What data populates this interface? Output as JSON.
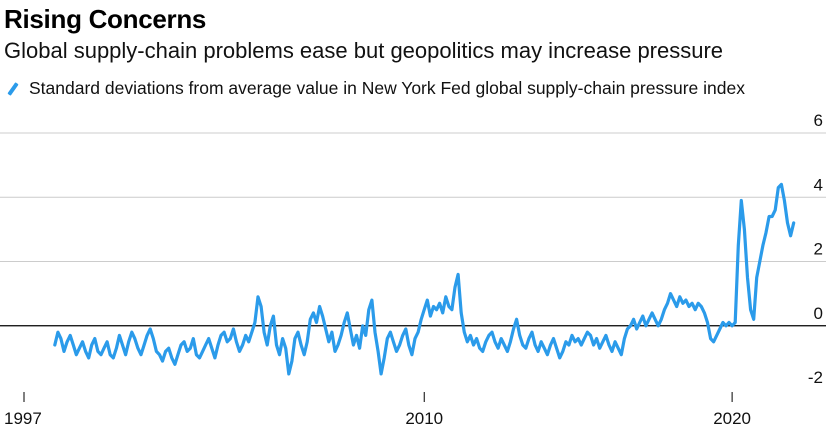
{
  "header": {
    "title": "Rising Concerns",
    "subtitle": "Global supply-chain problems ease but geopolitics may increase pressure"
  },
  "legend": {
    "label": "Standard deviations from average value in New York Fed global supply-chain pressure index"
  },
  "colors": {
    "line": "#2b9bea",
    "grid": "#cccccc",
    "zero_line": "#000000"
  },
  "chart_data": {
    "type": "line",
    "title": "Rising Concerns",
    "subtitle": "Global supply-chain problems ease but geopolitics may increase pressure",
    "xlabel": "",
    "ylabel": "Standard deviations from average value in New York Fed global supply-chain pressure index",
    "xlim": [
      1997,
      2022.4
    ],
    "ylim": [
      -2,
      6
    ],
    "y_ticks": [
      6,
      4,
      2,
      0,
      -2
    ],
    "y_tick_labels": [
      "6",
      "4",
      "2",
      "0",
      "-2"
    ],
    "x_ticks": [
      1997,
      2010,
      2020
    ],
    "x_tick_labels": [
      "1997",
      "2010",
      "2020"
    ],
    "grid": "horizontal",
    "legend_position": "top-left",
    "series": [
      {
        "name": "Standard deviations from average value in New York Fed global supply-chain pressure index",
        "x": [
          1998.0,
          1998.1,
          1998.2,
          1998.3,
          1998.4,
          1998.5,
          1998.6,
          1998.7,
          1998.8,
          1998.9,
          1999.0,
          1999.1,
          1999.2,
          1999.3,
          1999.4,
          1999.5,
          1999.6,
          1999.7,
          1999.8,
          1999.9,
          2000.0,
          2000.1,
          2000.2,
          2000.3,
          2000.4,
          2000.5,
          2000.6,
          2000.7,
          2000.8,
          2000.9,
          2001.0,
          2001.1,
          2001.2,
          2001.3,
          2001.4,
          2001.5,
          2001.6,
          2001.7,
          2001.8,
          2001.9,
          2002.0,
          2002.1,
          2002.2,
          2002.3,
          2002.4,
          2002.5,
          2002.6,
          2002.7,
          2002.8,
          2002.9,
          2003.0,
          2003.1,
          2003.2,
          2003.3,
          2003.4,
          2003.5,
          2003.6,
          2003.7,
          2003.8,
          2003.9,
          2004.0,
          2004.1,
          2004.2,
          2004.3,
          2004.4,
          2004.5,
          2004.6,
          2004.7,
          2004.8,
          2004.9,
          2005.0,
          2005.1,
          2005.2,
          2005.3,
          2005.4,
          2005.5,
          2005.6,
          2005.7,
          2005.8,
          2005.9,
          2006.0,
          2006.1,
          2006.2,
          2006.3,
          2006.4,
          2006.5,
          2006.6,
          2006.7,
          2006.8,
          2006.9,
          2007.0,
          2007.1,
          2007.2,
          2007.3,
          2007.4,
          2007.5,
          2007.6,
          2007.7,
          2007.8,
          2007.9,
          2008.0,
          2008.1,
          2008.2,
          2008.3,
          2008.4,
          2008.5,
          2008.6,
          2008.7,
          2008.8,
          2008.9,
          2009.0,
          2009.1,
          2009.2,
          2009.3,
          2009.4,
          2009.5,
          2009.6,
          2009.7,
          2009.8,
          2009.9,
          2010.0,
          2010.1,
          2010.2,
          2010.3,
          2010.4,
          2010.5,
          2010.6,
          2010.7,
          2010.8,
          2010.9,
          2011.0,
          2011.1,
          2011.2,
          2011.3,
          2011.4,
          2011.5,
          2011.6,
          2011.7,
          2011.8,
          2011.9,
          2012.0,
          2012.1,
          2012.2,
          2012.3,
          2012.4,
          2012.5,
          2012.6,
          2012.7,
          2012.8,
          2012.9,
          2013.0,
          2013.1,
          2013.2,
          2013.3,
          2013.4,
          2013.5,
          2013.6,
          2013.7,
          2013.8,
          2013.9,
          2014.0,
          2014.1,
          2014.2,
          2014.3,
          2014.4,
          2014.5,
          2014.6,
          2014.7,
          2014.8,
          2014.9,
          2015.0,
          2015.1,
          2015.2,
          2015.3,
          2015.4,
          2015.5,
          2015.6,
          2015.7,
          2015.8,
          2015.9,
          2016.0,
          2016.1,
          2016.2,
          2016.3,
          2016.4,
          2016.5,
          2016.6,
          2016.7,
          2016.8,
          2016.9,
          2017.0,
          2017.1,
          2017.2,
          2017.3,
          2017.4,
          2017.5,
          2017.6,
          2017.7,
          2017.8,
          2017.9,
          2018.0,
          2018.1,
          2018.2,
          2018.3,
          2018.4,
          2018.5,
          2018.6,
          2018.7,
          2018.8,
          2018.9,
          2019.0,
          2019.1,
          2019.2,
          2019.3,
          2019.4,
          2019.5,
          2019.6,
          2019.7,
          2019.8,
          2019.9,
          2020.0,
          2020.1,
          2020.2,
          2020.3,
          2020.4,
          2020.5,
          2020.6,
          2020.7,
          2020.8,
          2020.9,
          2021.0,
          2021.1,
          2021.2,
          2021.3,
          2021.4,
          2021.5,
          2021.6,
          2021.7,
          2021.8,
          2021.9,
          2022.0
        ],
        "y": [
          -0.6,
          -0.2,
          -0.4,
          -0.8,
          -0.5,
          -0.3,
          -0.6,
          -0.9,
          -0.7,
          -0.5,
          -0.8,
          -1.0,
          -0.6,
          -0.4,
          -0.8,
          -0.9,
          -0.7,
          -0.5,
          -0.9,
          -1.0,
          -0.7,
          -0.3,
          -0.6,
          -0.9,
          -0.5,
          -0.2,
          -0.4,
          -0.7,
          -0.9,
          -0.6,
          -0.3,
          -0.1,
          -0.4,
          -0.8,
          -0.9,
          -1.1,
          -0.8,
          -0.7,
          -1.0,
          -1.2,
          -0.9,
          -0.6,
          -0.5,
          -0.8,
          -0.7,
          -0.4,
          -0.9,
          -1.0,
          -0.8,
          -0.6,
          -0.4,
          -0.7,
          -1.0,
          -0.6,
          -0.3,
          -0.2,
          -0.5,
          -0.4,
          -0.1,
          -0.5,
          -0.8,
          -0.6,
          -0.3,
          -0.5,
          -0.2,
          0.1,
          0.9,
          0.6,
          -0.2,
          -0.6,
          0.0,
          0.3,
          -0.6,
          -0.9,
          -0.4,
          -0.7,
          -1.5,
          -1.1,
          -0.4,
          -0.2,
          -0.6,
          -0.9,
          -0.5,
          0.2,
          0.4,
          0.1,
          0.6,
          0.3,
          -0.1,
          -0.5,
          -0.2,
          -0.8,
          -0.6,
          -0.3,
          0.1,
          0.4,
          -0.1,
          -0.6,
          -0.3,
          -0.7,
          0.0,
          -0.3,
          0.5,
          0.8,
          -0.2,
          -0.8,
          -1.5,
          -1.0,
          -0.4,
          -0.2,
          -0.5,
          -0.8,
          -0.6,
          -0.3,
          -0.1,
          -0.6,
          -0.9,
          -0.4,
          -0.2,
          0.2,
          0.5,
          0.8,
          0.3,
          0.6,
          0.5,
          0.7,
          0.4,
          0.9,
          0.6,
          0.5,
          1.2,
          1.6,
          0.4,
          -0.2,
          -0.5,
          -0.3,
          -0.6,
          -0.4,
          -0.7,
          -0.8,
          -0.5,
          -0.3,
          -0.2,
          -0.5,
          -0.7,
          -0.4,
          -0.6,
          -0.8,
          -0.5,
          -0.1,
          0.2,
          -0.3,
          -0.6,
          -0.7,
          -0.4,
          -0.2,
          -0.6,
          -0.8,
          -0.5,
          -0.7,
          -0.9,
          -0.6,
          -0.4,
          -0.7,
          -1.0,
          -0.8,
          -0.5,
          -0.6,
          -0.3,
          -0.5,
          -0.4,
          -0.6,
          -0.4,
          -0.2,
          -0.3,
          -0.6,
          -0.4,
          -0.7,
          -0.5,
          -0.3,
          -0.6,
          -0.8,
          -0.5,
          -0.7,
          -0.9,
          -0.4,
          -0.1,
          0.0,
          0.2,
          -0.1,
          0.1,
          0.3,
          0.0,
          0.2,
          0.4,
          0.2,
          0.0,
          0.2,
          0.5,
          0.7,
          1.0,
          0.8,
          0.6,
          0.9,
          0.7,
          0.8,
          0.6,
          0.7,
          0.5,
          0.7,
          0.6,
          0.4,
          0.1,
          -0.4,
          -0.5,
          -0.3,
          -0.1,
          0.1,
          0.0,
          0.1,
          0.0,
          0.1,
          2.5,
          3.9,
          3.0,
          1.5,
          0.5,
          0.2,
          1.5,
          2.0,
          2.5,
          2.9,
          3.4,
          3.4,
          3.6,
          4.3,
          4.4,
          3.9,
          3.2,
          2.8,
          3.2
        ]
      }
    ]
  }
}
